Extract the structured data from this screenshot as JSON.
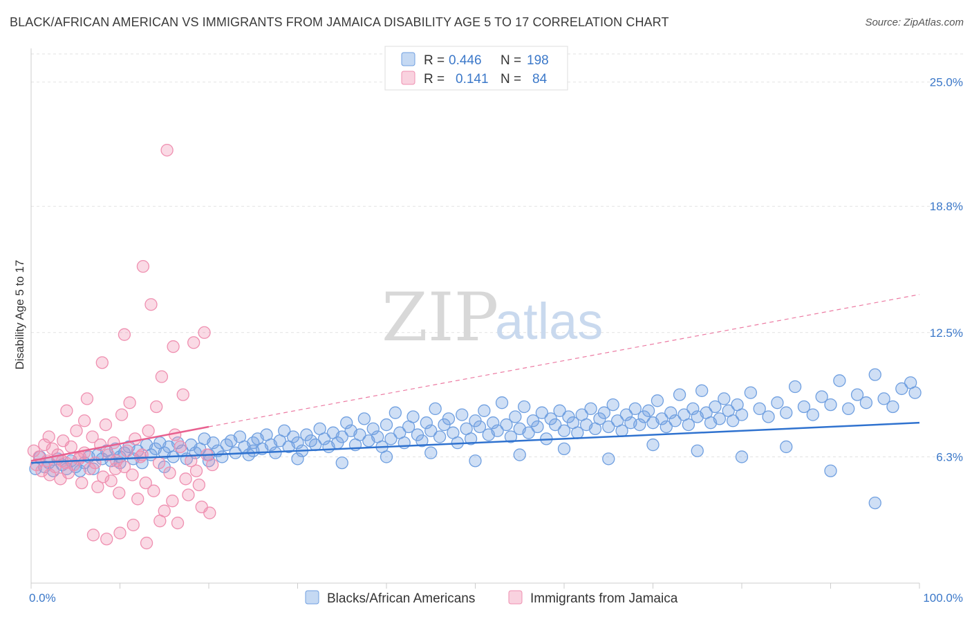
{
  "title": "BLACK/AFRICAN AMERICAN VS IMMIGRANTS FROM JAMAICA DISABILITY AGE 5 TO 17 CORRELATION CHART",
  "source": "Source: ZipAtlas.com",
  "watermark": {
    "zip": "ZIP",
    "atlas": "atlas"
  },
  "legend": {
    "rows": [
      {
        "r_label": "R =",
        "r_value": "0.446",
        "n_label": "N =",
        "n_value": "198",
        "color": "#6f9fe0"
      },
      {
        "r_label": "R =",
        "r_value": "0.141",
        "n_label": "N =",
        "n_value": "84",
        "color": "#ef8fb0"
      }
    ]
  },
  "chart_data": {
    "type": "scatter",
    "title": "BLACK/AFRICAN AMERICAN VS IMMIGRANTS FROM JAMAICA DISABILITY AGE 5 TO 17 CORRELATION CHART",
    "xlabel": "",
    "ylabel": "Disability Age 5 to 17",
    "xlim": [
      0,
      100
    ],
    "ylim": [
      0,
      26.4
    ],
    "x_tick_labels": [
      "0.0%",
      "100.0%"
    ],
    "y_ticks": [
      6.3,
      12.5,
      18.8,
      25.0
    ],
    "y_tick_labels": [
      "6.3%",
      "12.5%",
      "18.8%",
      "25.0%"
    ],
    "grid": "horizontal dashed",
    "legend_position": "top-center",
    "series": [
      {
        "name": "Blacks/African Americans",
        "color": "#6f9fe0",
        "trend": {
          "x": [
            0,
            100
          ],
          "y": [
            6.0,
            8.0
          ],
          "style": "solid"
        },
        "points": [
          [
            0.5,
            5.7
          ],
          [
            1.0,
            6.3
          ],
          [
            1.5,
            5.8
          ],
          [
            2.0,
            6.0
          ],
          [
            2.5,
            5.6
          ],
          [
            3.0,
            6.2
          ],
          [
            3.5,
            5.9
          ],
          [
            4.0,
            5.7
          ],
          [
            4.5,
            6.1
          ],
          [
            5.0,
            5.8
          ],
          [
            5.5,
            5.6
          ],
          [
            6.0,
            6.0
          ],
          [
            6.5,
            6.3
          ],
          [
            7.0,
            5.7
          ],
          [
            7.5,
            6.4
          ],
          [
            8.0,
            6.2
          ],
          [
            8.5,
            6.6
          ],
          [
            9.0,
            6.1
          ],
          [
            9.5,
            6.7
          ],
          [
            10.0,
            6.3
          ],
          [
            10.5,
            6.5
          ],
          [
            11.0,
            6.8
          ],
          [
            11.5,
            6.2
          ],
          [
            12.0,
            6.6
          ],
          [
            12.5,
            6.0
          ],
          [
            13.0,
            6.9
          ],
          [
            13.5,
            6.4
          ],
          [
            14.0,
            6.7
          ],
          [
            14.5,
            7.0
          ],
          [
            15.0,
            6.5
          ],
          [
            15.5,
            6.8
          ],
          [
            16.0,
            6.3
          ],
          [
            16.5,
            7.0
          ],
          [
            17.0,
            6.6
          ],
          [
            17.5,
            6.2
          ],
          [
            18.0,
            6.9
          ],
          [
            18.5,
            6.5
          ],
          [
            19.0,
            6.7
          ],
          [
            19.5,
            7.2
          ],
          [
            20.0,
            6.4
          ],
          [
            20.5,
            7.0
          ],
          [
            21.0,
            6.6
          ],
          [
            21.5,
            6.3
          ],
          [
            22.0,
            6.9
          ],
          [
            22.5,
            7.1
          ],
          [
            23.0,
            6.5
          ],
          [
            23.5,
            7.3
          ],
          [
            24.0,
            6.8
          ],
          [
            24.5,
            6.4
          ],
          [
            25.0,
            7.0
          ],
          [
            25.5,
            7.2
          ],
          [
            26.0,
            6.7
          ],
          [
            26.5,
            7.4
          ],
          [
            27.0,
            6.9
          ],
          [
            27.5,
            6.5
          ],
          [
            28.0,
            7.1
          ],
          [
            28.5,
            7.6
          ],
          [
            29.0,
            6.8
          ],
          [
            29.5,
            7.3
          ],
          [
            30.0,
            7.0
          ],
          [
            30.5,
            6.6
          ],
          [
            31.0,
            7.4
          ],
          [
            31.5,
            7.1
          ],
          [
            32.0,
            6.9
          ],
          [
            32.5,
            7.7
          ],
          [
            33.0,
            7.2
          ],
          [
            33.5,
            6.8
          ],
          [
            34.0,
            7.5
          ],
          [
            34.5,
            7.0
          ],
          [
            35.0,
            7.3
          ],
          [
            35.5,
            8.0
          ],
          [
            36.0,
            7.6
          ],
          [
            36.5,
            6.9
          ],
          [
            37.0,
            7.4
          ],
          [
            37.5,
            8.2
          ],
          [
            38.0,
            7.1
          ],
          [
            38.5,
            7.7
          ],
          [
            39.0,
            7.3
          ],
          [
            39.5,
            6.8
          ],
          [
            40.0,
            7.9
          ],
          [
            40.5,
            7.2
          ],
          [
            41.0,
            8.5
          ],
          [
            41.5,
            7.5
          ],
          [
            42.0,
            7.0
          ],
          [
            42.5,
            7.8
          ],
          [
            43.0,
            8.3
          ],
          [
            43.5,
            7.4
          ],
          [
            44.0,
            7.1
          ],
          [
            44.5,
            8.0
          ],
          [
            45.0,
            7.6
          ],
          [
            45.5,
            8.7
          ],
          [
            46.0,
            7.3
          ],
          [
            46.5,
            7.9
          ],
          [
            47.0,
            8.2
          ],
          [
            47.5,
            7.5
          ],
          [
            48.0,
            7.0
          ],
          [
            48.5,
            8.4
          ],
          [
            49.0,
            7.7
          ],
          [
            49.5,
            7.2
          ],
          [
            50.0,
            8.1
          ],
          [
            50.5,
            7.8
          ],
          [
            51.0,
            8.6
          ],
          [
            51.5,
            7.4
          ],
          [
            52.0,
            8.0
          ],
          [
            52.5,
            7.6
          ],
          [
            53.0,
            9.0
          ],
          [
            53.5,
            7.9
          ],
          [
            54.0,
            7.3
          ],
          [
            54.5,
            8.3
          ],
          [
            55.0,
            7.7
          ],
          [
            55.5,
            8.8
          ],
          [
            56.0,
            7.5
          ],
          [
            56.5,
            8.1
          ],
          [
            57.0,
            7.8
          ],
          [
            57.5,
            8.5
          ],
          [
            58.0,
            7.2
          ],
          [
            58.5,
            8.2
          ],
          [
            59.0,
            7.9
          ],
          [
            59.5,
            8.6
          ],
          [
            60.0,
            7.6
          ],
          [
            60.5,
            8.3
          ],
          [
            61.0,
            8.0
          ],
          [
            61.5,
            7.5
          ],
          [
            62.0,
            8.4
          ],
          [
            62.5,
            7.9
          ],
          [
            63.0,
            8.7
          ],
          [
            63.5,
            7.7
          ],
          [
            64.0,
            8.2
          ],
          [
            64.5,
            8.5
          ],
          [
            65.0,
            7.8
          ],
          [
            65.5,
            8.9
          ],
          [
            66.0,
            8.1
          ],
          [
            66.5,
            7.6
          ],
          [
            67.0,
            8.4
          ],
          [
            67.5,
            8.0
          ],
          [
            68.0,
            8.7
          ],
          [
            68.5,
            7.9
          ],
          [
            69.0,
            8.3
          ],
          [
            69.5,
            8.6
          ],
          [
            70.0,
            8.0
          ],
          [
            70.5,
            9.1
          ],
          [
            71.0,
            8.2
          ],
          [
            71.5,
            7.8
          ],
          [
            72.0,
            8.5
          ],
          [
            72.5,
            8.1
          ],
          [
            73.0,
            9.4
          ],
          [
            73.5,
            8.4
          ],
          [
            74.0,
            7.9
          ],
          [
            74.5,
            8.7
          ],
          [
            75.0,
            8.3
          ],
          [
            75.5,
            9.6
          ],
          [
            76.0,
            8.5
          ],
          [
            76.5,
            8.0
          ],
          [
            77.0,
            8.8
          ],
          [
            77.5,
            8.2
          ],
          [
            78.0,
            9.2
          ],
          [
            78.5,
            8.6
          ],
          [
            79.0,
            8.1
          ],
          [
            79.5,
            8.9
          ],
          [
            80.0,
            8.4
          ],
          [
            81.0,
            9.5
          ],
          [
            82.0,
            8.7
          ],
          [
            83.0,
            8.3
          ],
          [
            84.0,
            9.0
          ],
          [
            85.0,
            8.5
          ],
          [
            86.0,
            9.8
          ],
          [
            87.0,
            8.8
          ],
          [
            88.0,
            8.4
          ],
          [
            89.0,
            9.3
          ],
          [
            90.0,
            8.9
          ],
          [
            91.0,
            10.1
          ],
          [
            92.0,
            8.7
          ],
          [
            93.0,
            9.4
          ],
          [
            94.0,
            9.0
          ],
          [
            95.0,
            10.4
          ],
          [
            96.0,
            9.2
          ],
          [
            97.0,
            8.8
          ],
          [
            98.0,
            9.7
          ],
          [
            99.0,
            10.0
          ],
          [
            99.5,
            9.5
          ],
          [
            40.0,
            6.3
          ],
          [
            45.0,
            6.5
          ],
          [
            50.0,
            6.1
          ],
          [
            55.0,
            6.4
          ],
          [
            60.0,
            6.7
          ],
          [
            65.0,
            6.2
          ],
          [
            70.0,
            6.9
          ],
          [
            75.0,
            6.6
          ],
          [
            80.0,
            6.3
          ],
          [
            85.0,
            6.8
          ],
          [
            90.0,
            5.6
          ],
          [
            95.0,
            4.0
          ],
          [
            30.0,
            6.2
          ],
          [
            35.0,
            6.0
          ],
          [
            25.0,
            6.6
          ],
          [
            20.0,
            6.1
          ],
          [
            15.0,
            5.8
          ],
          [
            10.0,
            6.0
          ]
        ]
      },
      {
        "name": "Immigrants from Jamaica",
        "color": "#ef8fb0",
        "trend": {
          "x": [
            0,
            20
          ],
          "y": [
            6.1,
            7.8
          ],
          "style": "solid",
          "extension": {
            "x": [
              20,
              100
            ],
            "y": [
              7.8,
              14.4
            ],
            "style": "dashed"
          }
        },
        "points": [
          [
            0.3,
            6.6
          ],
          [
            0.6,
            5.9
          ],
          [
            0.9,
            6.3
          ],
          [
            1.2,
            5.6
          ],
          [
            1.5,
            6.9
          ],
          [
            1.8,
            6.1
          ],
          [
            2.1,
            5.4
          ],
          [
            2.4,
            6.7
          ],
          [
            2.7,
            5.8
          ],
          [
            3.0,
            6.4
          ],
          [
            3.3,
            5.2
          ],
          [
            3.6,
            7.1
          ],
          [
            3.9,
            6.0
          ],
          [
            4.2,
            5.5
          ],
          [
            4.5,
            6.8
          ],
          [
            4.8,
            5.9
          ],
          [
            5.1,
            7.6
          ],
          [
            5.4,
            6.2
          ],
          [
            5.7,
            5.0
          ],
          [
            6.0,
            6.5
          ],
          [
            6.3,
            9.2
          ],
          [
            6.6,
            5.7
          ],
          [
            6.9,
            7.3
          ],
          [
            7.2,
            6.0
          ],
          [
            7.5,
            4.8
          ],
          [
            7.8,
            6.9
          ],
          [
            8.1,
            5.3
          ],
          [
            8.4,
            7.9
          ],
          [
            8.7,
            6.4
          ],
          [
            9.0,
            5.1
          ],
          [
            9.3,
            7.0
          ],
          [
            9.6,
            6.1
          ],
          [
            9.9,
            4.5
          ],
          [
            10.2,
            8.4
          ],
          [
            10.5,
            5.8
          ],
          [
            10.8,
            6.6
          ],
          [
            11.1,
            9.0
          ],
          [
            11.4,
            5.4
          ],
          [
            11.7,
            7.2
          ],
          [
            12.0,
            4.2
          ],
          [
            12.3,
            6.3
          ],
          [
            12.6,
            15.8
          ],
          [
            12.9,
            5.0
          ],
          [
            13.2,
            7.6
          ],
          [
            13.5,
            13.9
          ],
          [
            13.8,
            4.6
          ],
          [
            14.1,
            8.8
          ],
          [
            14.4,
            6.0
          ],
          [
            14.7,
            10.3
          ],
          [
            15.0,
            3.6
          ],
          [
            15.3,
            21.6
          ],
          [
            15.6,
            5.5
          ],
          [
            15.9,
            4.1
          ],
          [
            16.2,
            7.4
          ],
          [
            16.5,
            3.0
          ],
          [
            16.8,
            6.8
          ],
          [
            17.1,
            9.4
          ],
          [
            17.4,
            5.2
          ],
          [
            17.7,
            4.4
          ],
          [
            18.0,
            6.1
          ],
          [
            18.3,
            12.0
          ],
          [
            18.6,
            5.6
          ],
          [
            18.9,
            4.9
          ],
          [
            19.2,
            3.8
          ],
          [
            19.5,
            12.5
          ],
          [
            19.8,
            6.4
          ],
          [
            20.1,
            3.5
          ],
          [
            20.4,
            5.9
          ],
          [
            7.0,
            2.4
          ],
          [
            8.5,
            2.2
          ],
          [
            10.0,
            2.5
          ],
          [
            11.5,
            2.9
          ],
          [
            13.0,
            2.0
          ],
          [
            14.5,
            3.1
          ],
          [
            2.0,
            7.3
          ],
          [
            4.0,
            8.6
          ],
          [
            6.0,
            8.1
          ],
          [
            8.0,
            11.0
          ],
          [
            10.5,
            12.4
          ],
          [
            16.0,
            11.8
          ],
          [
            3.5,
            6.1
          ],
          [
            5.5,
            6.3
          ],
          [
            9.5,
            5.7
          ],
          [
            12.5,
            6.4
          ]
        ]
      }
    ]
  }
}
